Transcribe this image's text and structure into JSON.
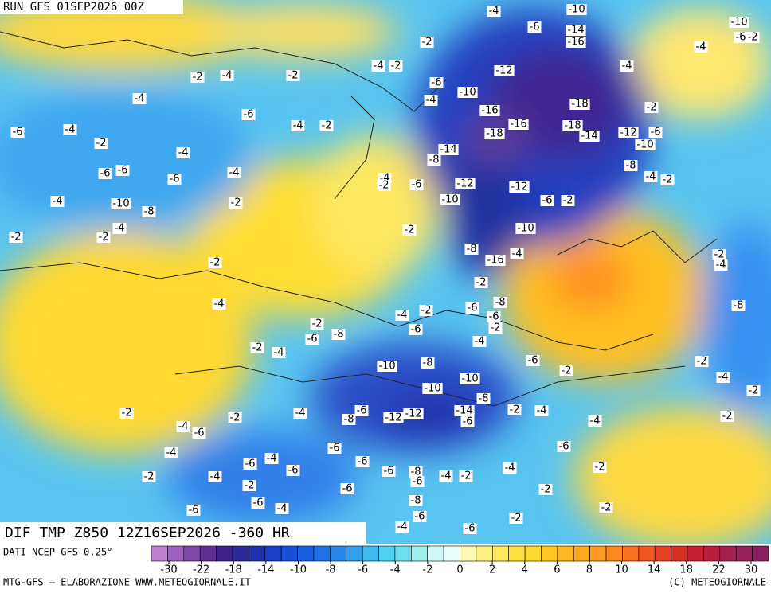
{
  "header": {
    "run": "RUN GFS 01SEP2026 00Z",
    "field": "DIF TMP Z850 12Z16SEP2026 -360 HR"
  },
  "footer": {
    "source": "DATI NCEP GFS 0.25°",
    "credit": "MTG-GFS – ELABORAZIONE WWW.METEOGIORNALE.IT",
    "copyright": "(C) METEOGIORNALE"
  },
  "colorbar": {
    "ticks": [
      -30,
      -22,
      -18,
      -14,
      -10,
      -8,
      -6,
      -4,
      -2,
      0,
      2,
      4,
      6,
      8,
      10,
      14,
      18,
      22,
      30
    ],
    "colors": [
      "#c080d0",
      "#a060c0",
      "#8048a8",
      "#603090",
      "#40208a",
      "#2a2a9a",
      "#2030b0",
      "#1a40c8",
      "#1850d8",
      "#1860e0",
      "#2070e8",
      "#2888f0",
      "#30a0f0",
      "#40b8f0",
      "#50d0f0",
      "#70e0f0",
      "#a0f0f0",
      "#d0f8f8",
      "#e8fcfc",
      "#fff8b0",
      "#fff080",
      "#ffe860",
      "#ffe040",
      "#ffd830",
      "#ffc820",
      "#ffb820",
      "#ffa820",
      "#ff9820",
      "#ff8820",
      "#f87020",
      "#f05820",
      "#e84020",
      "#d83020",
      "#c82030",
      "#b82040",
      "#a82050",
      "#982058",
      "#882060"
    ]
  },
  "contour_labels": [
    -4,
    -10,
    -10,
    -6,
    -2,
    -6,
    -14,
    -16,
    -4,
    -2,
    -4,
    -2,
    -12,
    -4,
    -2,
    -2,
    -4,
    -6,
    -10,
    -4,
    -4,
    -18,
    -2,
    -16,
    -6,
    -6,
    -4,
    -4,
    -2,
    -16,
    -18,
    -18,
    -14,
    -12,
    -6,
    -10,
    -2,
    -4,
    -14,
    -8,
    -8,
    -4,
    -2,
    -6,
    -6,
    -6,
    -4,
    -4,
    -2,
    -6,
    -12,
    -12,
    -6,
    -2,
    -4,
    -10,
    -8,
    -2,
    -10,
    -4,
    -2,
    -2,
    -2,
    -10,
    -8,
    -16,
    -4,
    -2,
    -4,
    -2,
    -2,
    -8,
    -4,
    -6,
    -8,
    -4,
    -2,
    -6,
    -2,
    -2,
    -6,
    -8,
    -6,
    -4,
    -2,
    -4,
    -10,
    -8,
    -6,
    -2,
    -2,
    -4,
    -10,
    -10,
    -8,
    -2,
    -2,
    -4,
    -6,
    -8,
    -12,
    -12,
    -14,
    -6,
    -2,
    -4,
    -4,
    -2,
    -2,
    -4,
    -6,
    -6,
    -6,
    -4,
    -4,
    -6,
    -6,
    -6,
    -6,
    -8,
    -4,
    -2,
    -4,
    -2,
    -2,
    -4,
    -2,
    -6,
    -6,
    -2,
    -6,
    -8,
    -6,
    -4,
    -2,
    -6,
    -2,
    -4,
    -6
  ]
}
